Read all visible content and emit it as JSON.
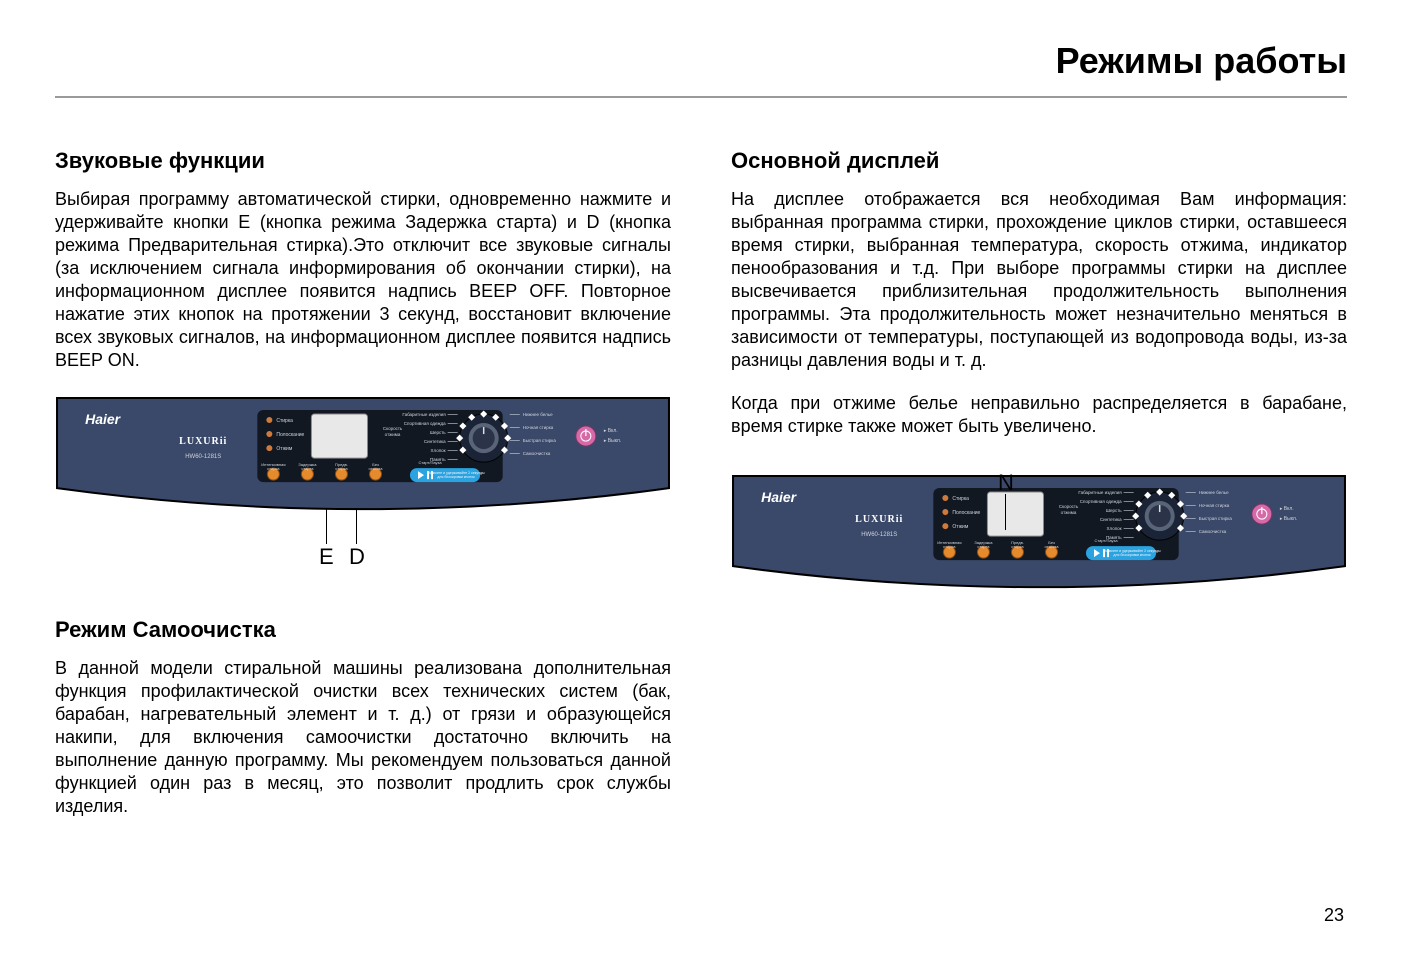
{
  "page": {
    "title": "Режимы работы",
    "number": "23"
  },
  "left": {
    "section1": {
      "heading": "Звуковые функции",
      "text": "Выбирая программу автоматической стирки, одновременно нажмите и удерживайте кнопки E (кнопка режима Задержка старта) и D (кнопка режима Предварительная стирка).Это отключит все звуковые сигналы (за исключением сигнала информирования об окончании стирки), на информационном дисплее появится надпись BEEP OFF. Повторное нажатие этих кнопок на протяжении 3 секунд, восстановит включение всех звуковых сигналов, на информационном дисплее появится надпись BEEP ON."
    },
    "section2": {
      "heading": "Режим  Самоочистка",
      "text": "В данной модели стиральной машины реализована дополнительная функция профилактической очистки всех технических систем (бак, барабан, нагревательный элемент и т. д.)  от грязи и образующейся накипи, для включения самоочистки достаточно включить на выполнение данную программу. Мы рекомендуем пользоваться данной функцией один раз в месяц, это позволит продлить срок службы изделия."
    },
    "callouts": {
      "E": "E",
      "D": "D"
    }
  },
  "right": {
    "section1": {
      "heading": "Основной дисплей",
      "text": "На дисплее отображается вся необходимая Вам информация: выбранная программа стирки, прохождение циклов стирки, оставшееся время стирки, выбранная температура, скорость отжима, индикатор пенообразования и т.д. При выборе программы стирки на дисплее высвечивается приблизительная продолжительность выполнения программы. Эта продолжительность может незначительно меняться в зависимости от температуры, поступающей из водопровода воды, из-за разницы давления воды и т. д.",
      "text2": "Когда при отжиме белье неправильно распределяется в барабане, время стирке также может быть увеличено."
    },
    "callouts": {
      "N": "N"
    }
  },
  "panel": {
    "brand": "Haier",
    "subbrand": "LUXURii",
    "model": "HW60-1281S",
    "colors": {
      "body": "#3a4969",
      "stroke": "#000000",
      "display": "#e8e8e8",
      "orangeBtn": "#e68a2e",
      "blueBtn": "#2aa3e0",
      "powerBtn": "#d66aa8",
      "led": "#cf7a3a",
      "labelText": "#d0d4dc",
      "white": "#ffffff"
    },
    "left_leds": [
      "Стирка",
      "Полоскание",
      "Отжим"
    ],
    "bottom_buttons": [
      "Интенсивная стирка",
      "Задержка старта",
      "Предв. стирка",
      "Без отжима",
      "Старт/Пауза"
    ],
    "right_labels_left": [
      "Габаритные изделия",
      "Спортивная одежда",
      "Шерсть",
      "Синтетика",
      "Хлопок",
      "Память"
    ],
    "right_labels_right": [
      "Нижнее белье",
      "Ночная стирка",
      "Быстрая стирка",
      "Самоочистка"
    ],
    "power_labels": [
      "Вкл.",
      "Выкл."
    ],
    "center_labels": [
      "Скорость отжима"
    ]
  }
}
